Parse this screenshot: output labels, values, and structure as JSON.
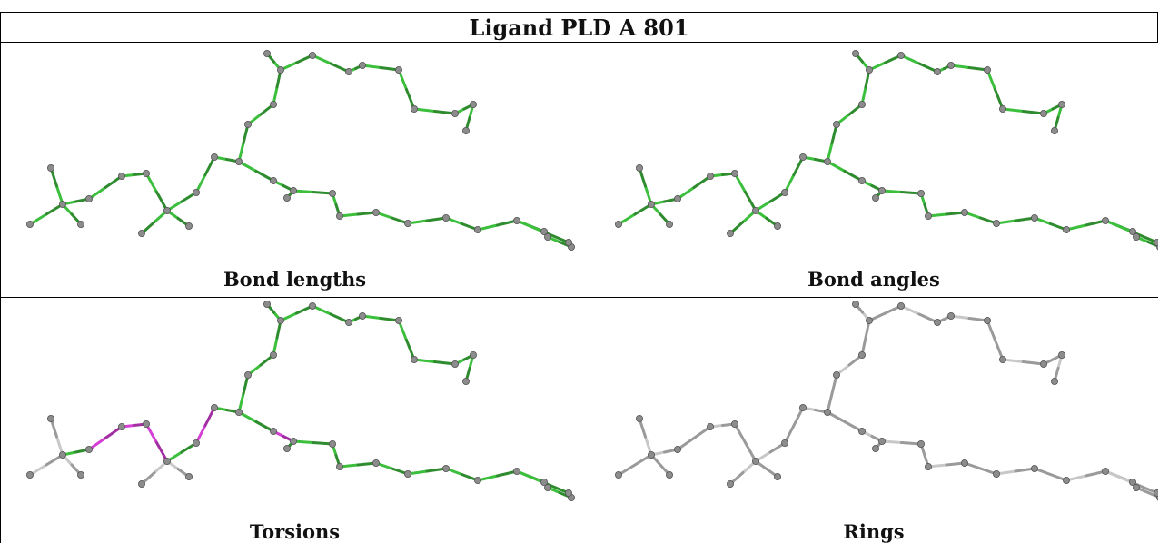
{
  "title": "Ligand PLD A 801",
  "panels": [
    {
      "caption": "Bond lengths",
      "scheme": "green-all"
    },
    {
      "caption": "Bond angles",
      "scheme": "green-all"
    },
    {
      "caption": "Torsions",
      "scheme": "torsion"
    },
    {
      "caption": "Rings",
      "scheme": "gray"
    }
  ],
  "colors": {
    "bond_green": "#3cbf3c",
    "bond_green_dark": "#2e8b2e",
    "bond_magenta": "#d63fd6",
    "bond_gray": "#c8c8c8",
    "bond_gray_dark": "#9a9a9a",
    "atom": "#8c8c8c",
    "atom_stroke": "#555555"
  }
}
